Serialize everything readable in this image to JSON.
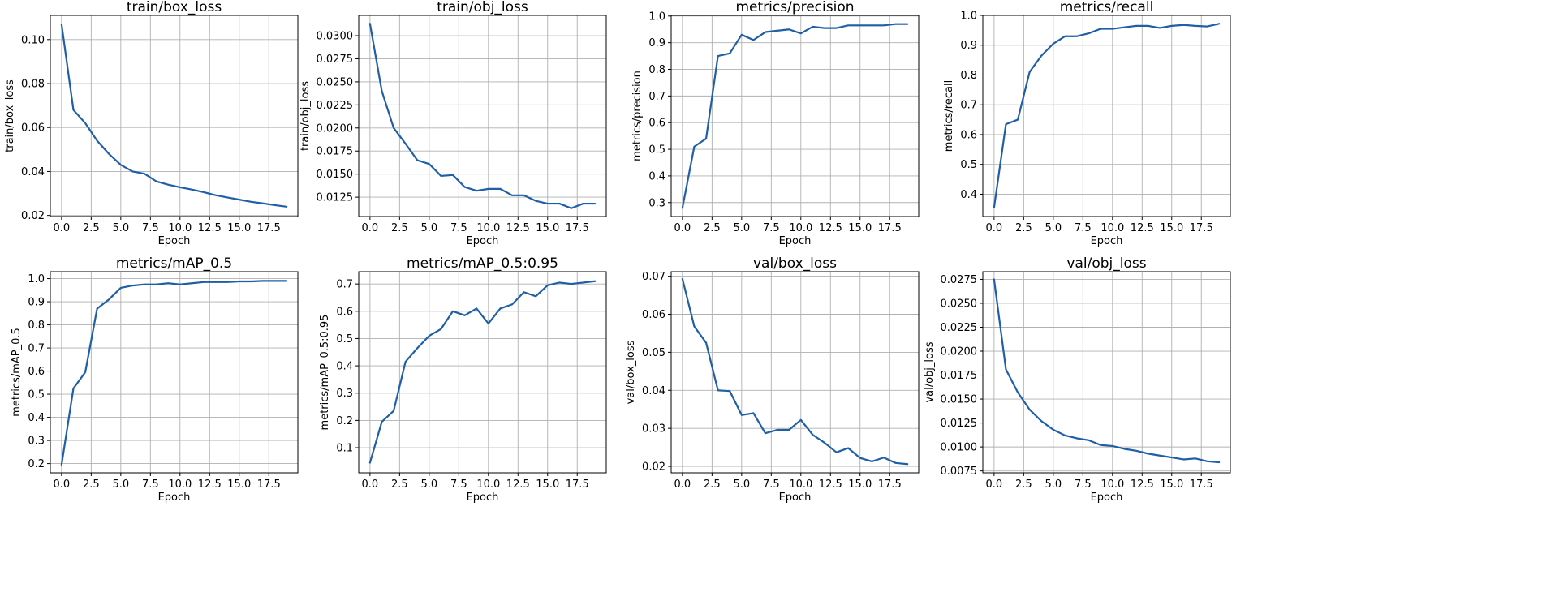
{
  "colors": {
    "series": "#1f5fa6",
    "grid": "#b0b0b0",
    "background": "#ffffff"
  },
  "chart_data": [
    {
      "type": "line",
      "title": "train/box_loss",
      "xlabel": "Epoch",
      "ylabel": "train/box_loss",
      "grid": true,
      "x": [
        0,
        1,
        2,
        3,
        4,
        5,
        6,
        7,
        8,
        9,
        10,
        11,
        12,
        13,
        14,
        15,
        16,
        17,
        18,
        19
      ],
      "xlim": [
        -0.95,
        19.95
      ],
      "xticks": [
        0.0,
        2.5,
        5.0,
        7.5,
        10.0,
        12.5,
        15.0,
        17.5
      ],
      "xtick_labels": [
        "0.0",
        "2.5",
        "5.0",
        "7.5",
        "10.0",
        "12.5",
        "15.0",
        "17.5"
      ],
      "ylim": [
        0.0195,
        0.111
      ],
      "yticks": [
        0.02,
        0.04,
        0.06,
        0.08,
        0.1
      ],
      "ytick_labels": [
        "0.02",
        "0.04",
        "0.06",
        "0.08",
        "0.10"
      ],
      "series": [
        {
          "values": [
            0.107,
            0.068,
            0.062,
            0.054,
            0.048,
            0.043,
            0.04,
            0.039,
            0.0355,
            0.034,
            0.0328,
            0.0318,
            0.0306,
            0.0292,
            0.0282,
            0.0272,
            0.0262,
            0.0255,
            0.0247,
            0.024
          ]
        }
      ]
    },
    {
      "type": "line",
      "title": "train/obj_loss",
      "xlabel": "Epoch",
      "ylabel": "train/obj_loss",
      "grid": true,
      "x": [
        0,
        1,
        2,
        3,
        4,
        5,
        6,
        7,
        8,
        9,
        10,
        11,
        12,
        13,
        14,
        15,
        16,
        17,
        18,
        19
      ],
      "xlim": [
        -0.95,
        19.95
      ],
      "xticks": [
        0.0,
        2.5,
        5.0,
        7.5,
        10.0,
        12.5,
        15.0,
        17.5
      ],
      "xtick_labels": [
        "0.0",
        "2.5",
        "5.0",
        "7.5",
        "10.0",
        "12.5",
        "15.0",
        "17.5"
      ],
      "ylim": [
        0.0104,
        0.0322
      ],
      "yticks": [
        0.0125,
        0.015,
        0.0175,
        0.02,
        0.0225,
        0.025,
        0.0275,
        0.03
      ],
      "ytick_labels": [
        "0.0125",
        "0.0150",
        "0.0175",
        "0.0200",
        "0.0225",
        "0.0250",
        "0.0275",
        "0.0300"
      ],
      "series": [
        {
          "values": [
            0.0313,
            0.024,
            0.02,
            0.0183,
            0.0165,
            0.0161,
            0.0148,
            0.0149,
            0.0136,
            0.0132,
            0.0134,
            0.0134,
            0.0127,
            0.0127,
            0.0121,
            0.0118,
            0.0118,
            0.0113,
            0.0118,
            0.0118
          ]
        }
      ]
    },
    {
      "type": "line",
      "title": "metrics/precision",
      "xlabel": "Epoch",
      "ylabel": "metrics/precision",
      "grid": true,
      "x": [
        0,
        1,
        2,
        3,
        4,
        5,
        6,
        7,
        8,
        9,
        10,
        11,
        12,
        13,
        14,
        15,
        16,
        17,
        18,
        19
      ],
      "xlim": [
        -0.95,
        19.95
      ],
      "xticks": [
        0.0,
        2.5,
        5.0,
        7.5,
        10.0,
        12.5,
        15.0,
        17.5
      ],
      "xtick_labels": [
        "0.0",
        "2.5",
        "5.0",
        "7.5",
        "10.0",
        "12.5",
        "15.0",
        "17.5"
      ],
      "ylim": [
        0.2475,
        1.0025
      ],
      "yticks": [
        0.3,
        0.4,
        0.5,
        0.6,
        0.7,
        0.8,
        0.9,
        1.0
      ],
      "ytick_labels": [
        "0.3",
        "0.4",
        "0.5",
        "0.6",
        "0.7",
        "0.8",
        "0.9",
        "1.0"
      ],
      "series": [
        {
          "values": [
            0.28,
            0.51,
            0.54,
            0.85,
            0.86,
            0.93,
            0.91,
            0.94,
            0.945,
            0.95,
            0.935,
            0.96,
            0.955,
            0.955,
            0.965,
            0.965,
            0.965,
            0.965,
            0.97,
            0.97
          ]
        }
      ]
    },
    {
      "type": "line",
      "title": "metrics/recall",
      "xlabel": "Epoch",
      "ylabel": "metrics/recall",
      "grid": true,
      "x": [
        0,
        1,
        2,
        3,
        4,
        5,
        6,
        7,
        8,
        9,
        10,
        11,
        12,
        13,
        14,
        15,
        16,
        17,
        18,
        19
      ],
      "xlim": [
        -0.95,
        19.95
      ],
      "xticks": [
        0.0,
        2.5,
        5.0,
        7.5,
        10.0,
        12.5,
        15.0,
        17.5
      ],
      "xtick_labels": [
        "0.0",
        "2.5",
        "5.0",
        "7.5",
        "10.0",
        "12.5",
        "15.0",
        "17.5"
      ],
      "ylim": [
        0.325,
        1.0
      ],
      "yticks": [
        0.4,
        0.5,
        0.6,
        0.7,
        0.8,
        0.9,
        1.0
      ],
      "ytick_labels": [
        "0.4",
        "0.5",
        "0.6",
        "0.7",
        "0.8",
        "0.9",
        "1.0"
      ],
      "series": [
        {
          "values": [
            0.355,
            0.635,
            0.65,
            0.81,
            0.865,
            0.905,
            0.93,
            0.93,
            0.94,
            0.955,
            0.955,
            0.96,
            0.965,
            0.965,
            0.958,
            0.965,
            0.968,
            0.965,
            0.963,
            0.972
          ]
        }
      ]
    },
    {
      "type": "line",
      "title": "metrics/mAP_0.5",
      "xlabel": "Epoch",
      "ylabel": "metrics/mAP_0.5",
      "grid": true,
      "x": [
        0,
        1,
        2,
        3,
        4,
        5,
        6,
        7,
        8,
        9,
        10,
        11,
        12,
        13,
        14,
        15,
        16,
        17,
        18,
        19
      ],
      "xlim": [
        -0.95,
        19.95
      ],
      "xticks": [
        0.0,
        2.5,
        5.0,
        7.5,
        10.0,
        12.5,
        15.0,
        17.5
      ],
      "xtick_labels": [
        "0.0",
        "2.5",
        "5.0",
        "7.5",
        "10.0",
        "12.5",
        "15.0",
        "17.5"
      ],
      "ylim": [
        0.16,
        1.03
      ],
      "yticks": [
        0.2,
        0.3,
        0.4,
        0.5,
        0.6,
        0.7,
        0.8,
        0.9,
        1.0
      ],
      "ytick_labels": [
        "0.2",
        "0.3",
        "0.4",
        "0.5",
        "0.6",
        "0.7",
        "0.8",
        "0.9",
        "1.0"
      ],
      "series": [
        {
          "values": [
            0.195,
            0.525,
            0.595,
            0.87,
            0.91,
            0.96,
            0.97,
            0.975,
            0.975,
            0.98,
            0.975,
            0.98,
            0.985,
            0.985,
            0.985,
            0.988,
            0.988,
            0.99,
            0.99,
            0.99
          ]
        }
      ]
    },
    {
      "type": "line",
      "title": "metrics/mAP_0.5:0.95",
      "xlabel": "Epoch",
      "ylabel": "metrics/mAP_0.5:0.95",
      "grid": true,
      "x": [
        0,
        1,
        2,
        3,
        4,
        5,
        6,
        7,
        8,
        9,
        10,
        11,
        12,
        13,
        14,
        15,
        16,
        17,
        18,
        19
      ],
      "xlim": [
        -0.95,
        19.95
      ],
      "xticks": [
        0.0,
        2.5,
        5.0,
        7.5,
        10.0,
        12.5,
        15.0,
        17.5
      ],
      "xtick_labels": [
        "0.0",
        "2.5",
        "5.0",
        "7.5",
        "10.0",
        "12.5",
        "15.0",
        "17.5"
      ],
      "ylim": [
        0.008,
        0.745
      ],
      "yticks": [
        0.1,
        0.2,
        0.3,
        0.4,
        0.5,
        0.6,
        0.7
      ],
      "ytick_labels": [
        "0.1",
        "0.2",
        "0.3",
        "0.4",
        "0.5",
        "0.6",
        "0.7"
      ],
      "series": [
        {
          "values": [
            0.045,
            0.195,
            0.235,
            0.415,
            0.465,
            0.51,
            0.535,
            0.6,
            0.585,
            0.61,
            0.555,
            0.61,
            0.625,
            0.67,
            0.655,
            0.695,
            0.705,
            0.7,
            0.705,
            0.71
          ]
        }
      ]
    },
    {
      "type": "line",
      "title": "val/box_loss",
      "xlabel": "Epoch",
      "ylabel": "val/box_loss",
      "grid": true,
      "x": [
        0,
        1,
        2,
        3,
        4,
        5,
        6,
        7,
        8,
        9,
        10,
        11,
        12,
        13,
        14,
        15,
        16,
        17,
        18,
        19
      ],
      "xlim": [
        -0.95,
        19.95
      ],
      "xticks": [
        0.0,
        2.5,
        5.0,
        7.5,
        10.0,
        12.5,
        15.0,
        17.5
      ],
      "xtick_labels": [
        "0.0",
        "2.5",
        "5.0",
        "7.5",
        "10.0",
        "12.5",
        "15.0",
        "17.5"
      ],
      "ylim": [
        0.0183,
        0.0712
      ],
      "yticks": [
        0.02,
        0.03,
        0.04,
        0.05,
        0.06,
        0.07
      ],
      "ytick_labels": [
        "0.02",
        "0.03",
        "0.04",
        "0.05",
        "0.06",
        "0.07"
      ],
      "series": [
        {
          "values": [
            0.0693,
            0.0568,
            0.0525,
            0.04,
            0.0398,
            0.0335,
            0.034,
            0.0287,
            0.0296,
            0.0296,
            0.0322,
            0.0283,
            0.0262,
            0.0237,
            0.0248,
            0.0222,
            0.0213,
            0.0223,
            0.0209,
            0.0206
          ]
        }
      ]
    },
    {
      "type": "line",
      "title": "val/obj_loss",
      "xlabel": "Epoch",
      "ylabel": "val/obj_loss",
      "grid": true,
      "x": [
        0,
        1,
        2,
        3,
        4,
        5,
        6,
        7,
        8,
        9,
        10,
        11,
        12,
        13,
        14,
        15,
        16,
        17,
        18,
        19
      ],
      "xlim": [
        -0.95,
        19.95
      ],
      "xticks": [
        0.0,
        2.5,
        5.0,
        7.5,
        10.0,
        12.5,
        15.0,
        17.5
      ],
      "xtick_labels": [
        "0.0",
        "2.5",
        "5.0",
        "7.5",
        "10.0",
        "12.5",
        "15.0",
        "17.5"
      ],
      "ylim": [
        0.0073,
        0.0283
      ],
      "yticks": [
        0.0075,
        0.01,
        0.0125,
        0.015,
        0.0175,
        0.02,
        0.0225,
        0.025,
        0.0275
      ],
      "ytick_labels": [
        "0.0075",
        "0.0100",
        "0.0125",
        "0.0150",
        "0.0175",
        "0.0200",
        "0.0225",
        "0.0250",
        "0.0275"
      ],
      "series": [
        {
          "values": [
            0.0275,
            0.0181,
            0.0157,
            0.0139,
            0.0127,
            0.0118,
            0.0112,
            0.0109,
            0.0107,
            0.0102,
            0.0101,
            0.0098,
            0.0096,
            0.0093,
            0.0091,
            0.0089,
            0.0087,
            0.0088,
            0.0085,
            0.0084
          ]
        }
      ]
    }
  ]
}
